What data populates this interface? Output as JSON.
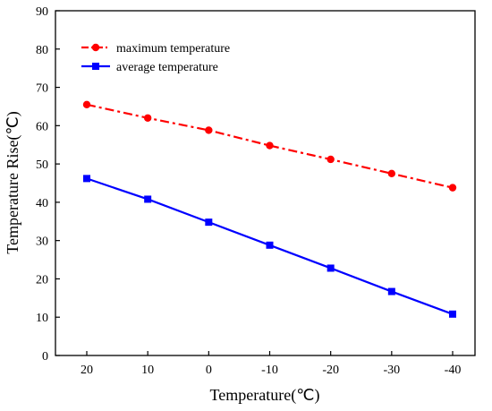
{
  "chart_data": {
    "type": "line",
    "title": "",
    "xlabel": "Temperature(℃)",
    "ylabel": "Temperature Rise(℃)",
    "categories": [
      "20",
      "10",
      "0",
      "-10",
      "-20",
      "-30",
      "-40"
    ],
    "ylim": [
      0,
      90
    ],
    "yticks": [
      0,
      10,
      20,
      30,
      40,
      50,
      60,
      70,
      80,
      90
    ],
    "grid": false,
    "legend_position": "top-left",
    "series": [
      {
        "name": "maximum temperature",
        "color": "#ff0000",
        "marker": "circle",
        "line_style": "dash-dot",
        "values": [
          65.5,
          62.0,
          58.8,
          54.8,
          51.2,
          47.5,
          43.8
        ]
      },
      {
        "name": "average temperature",
        "color": "#0000ff",
        "marker": "square",
        "line_style": "solid",
        "values": [
          46.2,
          40.8,
          34.8,
          28.8,
          22.8,
          16.7,
          10.8
        ]
      }
    ]
  }
}
